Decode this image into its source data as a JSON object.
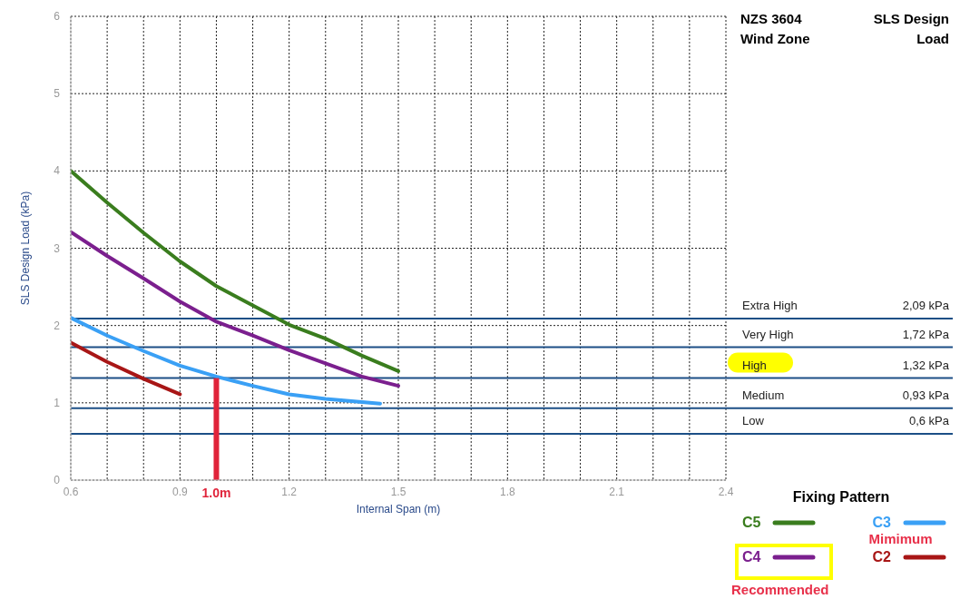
{
  "chart_data": {
    "type": "line",
    "xlabel": "Internal Span (m)",
    "ylabel": "SLS Design Load (kPa)",
    "legend_title": "Fixing Pattern",
    "legend": "bottom right",
    "grid": true,
    "marker": "none",
    "line_style": "solid",
    "xlim": [
      0.6,
      2.4
    ],
    "ylim": [
      0,
      6
    ],
    "xticks": [
      0.6,
      {
        "value": 0.7,
        "label": null
      },
      {
        "value": 0.8,
        "label": null
      },
      0.9,
      {
        "value": 1.0,
        "label": null
      },
      {
        "value": 1.1,
        "label": null
      },
      1.2,
      {
        "value": 1.3,
        "label": null
      },
      {
        "value": 1.4,
        "label": null
      },
      1.5,
      {
        "value": 1.6,
        "label": null
      },
      {
        "value": 1.7,
        "label": null
      },
      1.8,
      {
        "value": 1.9,
        "label": null
      },
      {
        "value": 2.0,
        "label": null
      },
      2.1,
      {
        "value": 2.2,
        "label": null
      },
      {
        "value": 2.3,
        "label": null
      },
      2.4
    ],
    "yticks": [
      0,
      1,
      2,
      3,
      4,
      5,
      6
    ],
    "series": [
      {
        "name": "C5",
        "color": "#3a7d1e",
        "x": [
          0.6,
          0.7,
          0.8,
          0.9,
          1.0,
          1.1,
          1.2,
          1.3,
          1.4,
          1.5
        ],
        "values": [
          4.0,
          3.59,
          3.2,
          2.83,
          2.51,
          2.26,
          2.01,
          1.83,
          1.61,
          1.41
        ]
      },
      {
        "name": "C4",
        "color": "#7b1f8e",
        "x": [
          0.6,
          0.7,
          0.8,
          0.9,
          1.0,
          1.1,
          1.2,
          1.3,
          1.4,
          1.5
        ],
        "values": [
          3.21,
          2.9,
          2.61,
          2.31,
          2.05,
          1.87,
          1.68,
          1.51,
          1.34,
          1.22
        ]
      },
      {
        "name": "C3",
        "color": "#3aa0f5",
        "x": [
          0.6,
          0.7,
          0.8,
          0.9,
          1.0,
          1.1,
          1.2,
          1.3,
          1.45
        ],
        "values": [
          2.1,
          1.87,
          1.67,
          1.48,
          1.34,
          1.22,
          1.11,
          1.05,
          0.99
        ]
      },
      {
        "name": "C2",
        "color": "#a81616",
        "x": [
          0.6,
          0.7,
          0.8,
          0.9
        ],
        "values": [
          1.78,
          1.53,
          1.31,
          1.11
        ]
      },
      {
        "color": "#e0233a",
        "x": [
          1.0,
          1.0
        ],
        "values": [
          0,
          1.32
        ]
      }
    ],
    "ref_lines": [
      {
        "axis": "y",
        "value": 2.09,
        "label": "Extra High",
        "color": "#1c4f86"
      },
      {
        "axis": "y",
        "value": 1.72,
        "label": "Very High",
        "color": "#1c4f86"
      },
      {
        "axis": "y",
        "value": 1.32,
        "label": "High",
        "color": "#1c4f86"
      },
      {
        "axis": "y",
        "value": 0.93,
        "label": "Medium",
        "color": "#1c4f86"
      },
      {
        "axis": "y",
        "value": 0.6,
        "label": "Low",
        "color": "#1c4f86"
      }
    ],
    "annotations": [
      "NZS 3604 Wind Zone",
      "SLS Design Load",
      "Mimimum",
      "Recommended",
      {
        "text": "1.0m",
        "x": 1.0,
        "y": 0
      },
      "2,09 kPa",
      "1,72 kPa",
      "1,32 kPa",
      "0,93 kPa",
      "0,6 kPa"
    ]
  }
}
